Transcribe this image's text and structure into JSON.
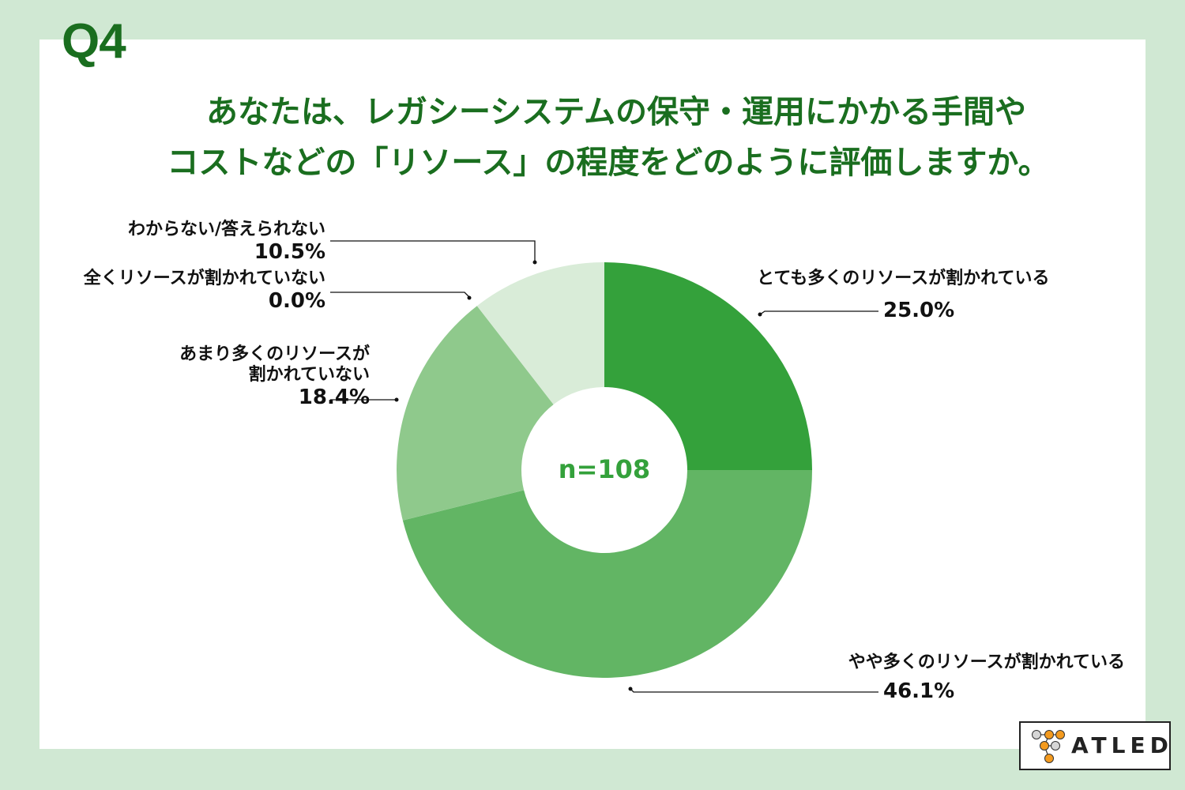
{
  "question_label": "Q4",
  "title": {
    "line1": "あなたは、レガシーシステムの保守・運用にかかる手間や",
    "line2": "コストなどの「リソース」の程度をどのように評価しますか。"
  },
  "center_label": "n=108",
  "labels": {
    "very_many": {
      "text": "とても多くのリソースが割かれている",
      "pct": "25.0%"
    },
    "somewhat_many": {
      "text": "やや多くのリソースが割かれている",
      "pct": "46.1%"
    },
    "not_much": {
      "line1": "あまり多くのリソースが",
      "line2": "割かれていない",
      "pct": "18.4%"
    },
    "none": {
      "text": "全くリソースが割かれていない",
      "pct": "0.0%"
    },
    "unknown": {
      "text": "わからない/答えられない",
      "pct": "10.5%"
    }
  },
  "logo": {
    "text": "ATLED",
    "icon": "network-nodes-icon",
    "node_orange": "#f39a1e",
    "node_gray": "#d6d6d6"
  },
  "colors": {
    "background": "#d0e8d3",
    "title": "#1a6e1f",
    "center_text": "#34a13b"
  },
  "chart_data": {
    "type": "pie",
    "subtype": "donut",
    "title": "あなたは、レガシーシステムの保守・運用にかかる手間やコストなどの「リソース」の程度をどのように評価しますか。",
    "center_annotation": "n=108",
    "start_angle": "12 o'clock, clockwise",
    "categories": [
      "とても多くのリソースが割かれている",
      "やや多くのリソースが割かれている",
      "あまり多くのリソースが割かれていない",
      "全くリソースが割かれていない",
      "わからない/答えられない"
    ],
    "values": [
      25.0,
      46.1,
      18.4,
      0.0,
      10.5
    ],
    "unit": "%",
    "colors": [
      "#34a13b",
      "#62b564",
      "#8fc98c",
      "#b9dcb6",
      "#d9ecd8"
    ],
    "legend": "none (leader-line labels)"
  }
}
